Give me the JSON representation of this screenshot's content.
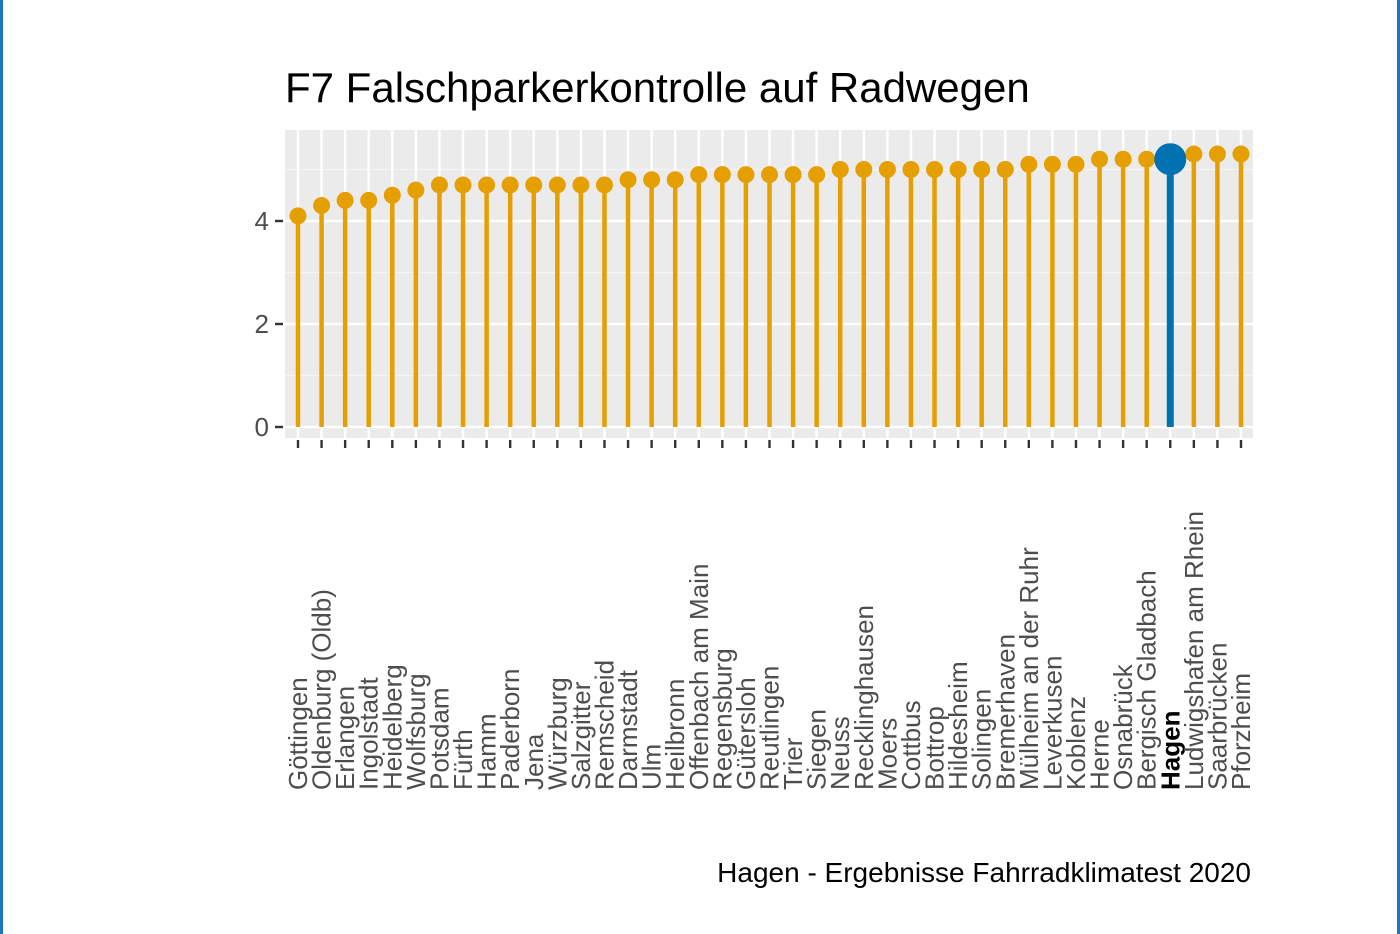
{
  "colors": {
    "panel_bg": "#ebebeb",
    "grid_major": "#ffffff",
    "grid_minor": "#f5f5f5",
    "lollipop": "#e69f00",
    "highlight": "#0072b2",
    "border": "#1f77c4"
  },
  "chart_data": {
    "type": "lollipop",
    "title": "F7 Falschparkerkontrolle auf Radwegen",
    "caption": "Hagen - Ergebnisse Fahrradklimatest 2020",
    "xlabel": "",
    "ylabel": "",
    "ylim": [
      0,
      5.6
    ],
    "yticks": [
      0,
      2,
      4
    ],
    "grid": true,
    "highlight": "Hagen",
    "categories": [
      "Göttingen",
      "Oldenburg (Oldb)",
      "Erlangen",
      "Ingolstadt",
      "Heidelberg",
      "Wolfsburg",
      "Potsdam",
      "Fürth",
      "Hamm",
      "Paderborn",
      "Jena",
      "Würzburg",
      "Salzgitter",
      "Remscheid",
      "Darmstadt",
      "Ulm",
      "Heilbronn",
      "Offenbach am Main",
      "Regensburg",
      "Gütersloh",
      "Reutlingen",
      "Trier",
      "Siegen",
      "Neuss",
      "Recklinghausen",
      "Moers",
      "Cottbus",
      "Bottrop",
      "Hildesheim",
      "Solingen",
      "Bremerhaven",
      "Mülheim an der Ruhr",
      "Leverkusen",
      "Koblenz",
      "Herne",
      "Osnabrück",
      "Bergisch Gladbach",
      "Hagen",
      "Ludwigshafen am Rhein",
      "Saarbrücken",
      "Pforzheim"
    ],
    "values": [
      4.1,
      4.3,
      4.4,
      4.4,
      4.5,
      4.6,
      4.7,
      4.7,
      4.7,
      4.7,
      4.7,
      4.7,
      4.7,
      4.7,
      4.8,
      4.8,
      4.8,
      4.9,
      4.9,
      4.9,
      4.9,
      4.9,
      4.9,
      5.0,
      5.0,
      5.0,
      5.0,
      5.0,
      5.0,
      5.0,
      5.0,
      5.1,
      5.1,
      5.1,
      5.2,
      5.2,
      5.2,
      5.2,
      5.3,
      5.3,
      5.3
    ]
  }
}
